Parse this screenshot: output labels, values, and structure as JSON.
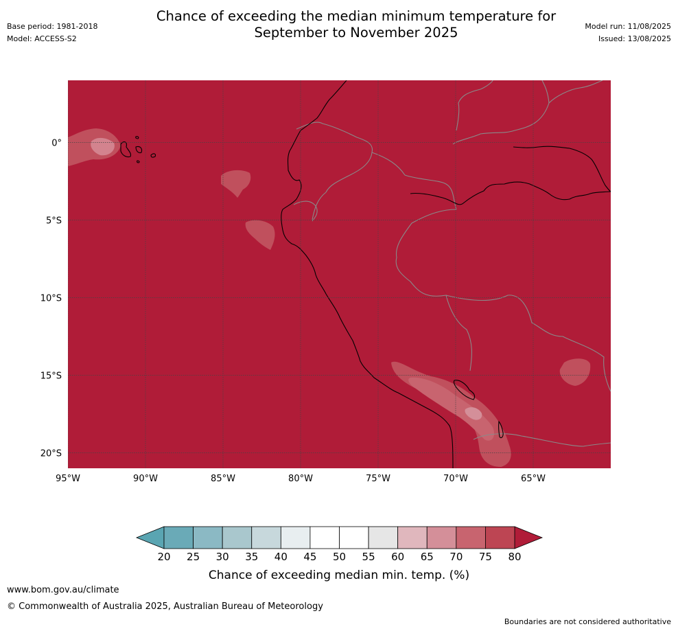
{
  "header": {
    "title_line1": "Chance of exceeding the median minimum temperature for",
    "title_line2": "September to November 2025",
    "base_period": "Base period: 1981-2018",
    "model": "Model: ACCESS-S2",
    "model_run": "Model run: 11/08/2025",
    "issued": "Issued: 13/08/2025"
  },
  "map": {
    "background_color": "#b01c38",
    "lat_labels": [
      "0°",
      "5°S",
      "10°S",
      "15°S",
      "20°S"
    ],
    "lon_labels": [
      "95°W",
      "90°W",
      "85°W",
      "80°W",
      "75°W",
      "70°W",
      "65°W"
    ],
    "lat_values": [
      0,
      -5,
      -10,
      -15,
      -20
    ],
    "lon_values": [
      -95,
      -90,
      -85,
      -80,
      -75,
      -70,
      -65
    ],
    "extent": {
      "lon_min": -95,
      "lon_max": -60,
      "lat_min": -21,
      "lat_max": 4
    }
  },
  "colorbar": {
    "ticks": [
      "20",
      "25",
      "30",
      "35",
      "40",
      "45",
      "50",
      "55",
      "60",
      "65",
      "70",
      "75",
      "80"
    ],
    "colors": [
      "#6aaab7",
      "#8bb9c4",
      "#a9c7cd",
      "#c7d8dc",
      "#e8eef0",
      "#ffffff",
      "#ffffff",
      "#e6e6e6",
      "#e0b7bd",
      "#d48f99",
      "#c8646f",
      "#bd4553"
    ],
    "under_color": "#5aa5b2",
    "over_color": "#b01c38",
    "label": "Chance of exceeding median min. temp. (%)"
  },
  "footer": {
    "website": "www.bom.gov.au/climate",
    "copyright": "© Commonwealth of Australia 2025, Australian Bureau of Meteorology",
    "note": "Boundaries are not considered authoritative"
  }
}
